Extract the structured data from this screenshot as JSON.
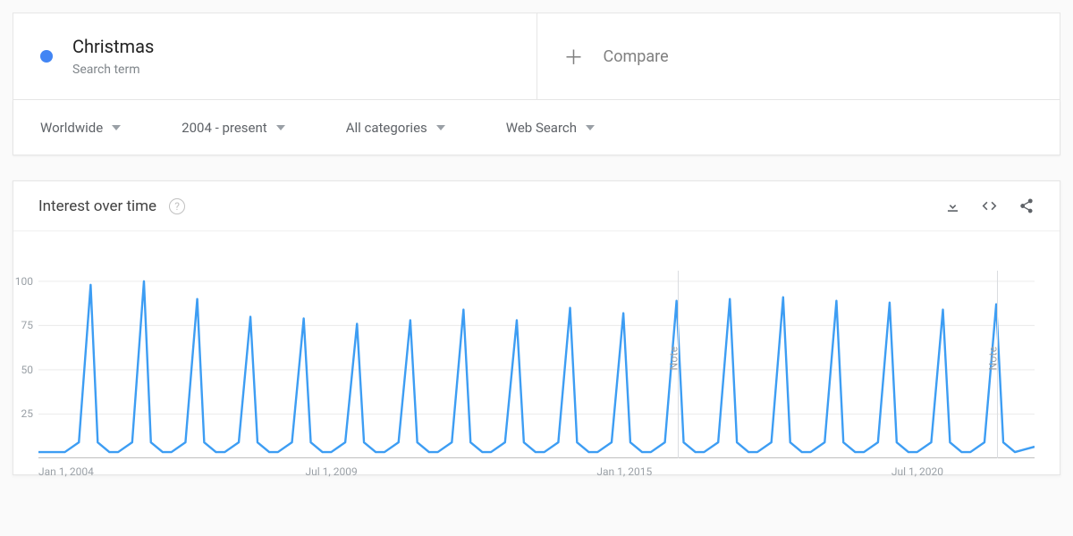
{
  "term": {
    "name": "Christmas",
    "sub": "Search term",
    "dot_color": "#4285f4"
  },
  "compare": {
    "label": "Compare"
  },
  "filters": {
    "geo": "Worldwide",
    "time": "2004 - present",
    "category": "All categories",
    "search_type": "Web Search"
  },
  "chart": {
    "title": "Interest over time",
    "line_color": "#3d9df3",
    "line_width": 2.4,
    "grid_color": "#ececec",
    "axis_color": "#c0c0c0",
    "y_ticks": [
      25,
      50,
      75,
      100
    ],
    "y_min": 0,
    "y_max": 106,
    "x_min_year": 2004,
    "x_max_year": 2022.7,
    "x_ticks": [
      {
        "year": 2004.0,
        "label": "Jan 1, 2004"
      },
      {
        "year": 2009.5,
        "label": "Jul 1, 2009"
      },
      {
        "year": 2015.0,
        "label": "Jan 1, 2015"
      },
      {
        "year": 2020.5,
        "label": "Jul 1, 2020"
      }
    ],
    "notes": [
      {
        "year": 2016.0,
        "label": "Note"
      },
      {
        "year": 2022.0,
        "label": "Note"
      }
    ],
    "peaks": [
      {
        "year": 2004,
        "value": 98
      },
      {
        "year": 2005,
        "value": 100
      },
      {
        "year": 2006,
        "value": 90
      },
      {
        "year": 2007,
        "value": 80
      },
      {
        "year": 2008,
        "value": 79
      },
      {
        "year": 2009,
        "value": 76
      },
      {
        "year": 2010,
        "value": 78
      },
      {
        "year": 2011,
        "value": 84
      },
      {
        "year": 2012,
        "value": 78
      },
      {
        "year": 2013,
        "value": 85
      },
      {
        "year": 2014,
        "value": 82
      },
      {
        "year": 2015,
        "value": 89
      },
      {
        "year": 2016,
        "value": 90
      },
      {
        "year": 2017,
        "value": 91
      },
      {
        "year": 2018,
        "value": 89
      },
      {
        "year": 2019,
        "value": 88
      },
      {
        "year": 2020,
        "value": 84
      },
      {
        "year": 2021,
        "value": 87
      }
    ],
    "baseline": 3.5,
    "peak_month_offset": 0.98,
    "peak_half_width": 0.22,
    "peak_shoulder": 9
  }
}
